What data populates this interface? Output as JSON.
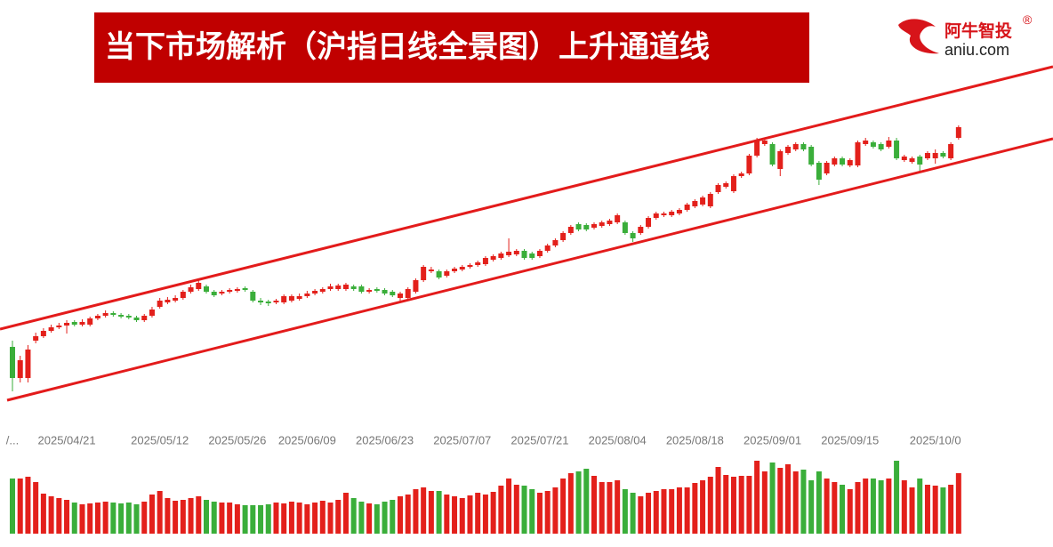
{
  "header": {
    "title": "当下市场解析（沪指日线全景图）上升通道线"
  },
  "logo": {
    "name": "阿牛智投",
    "mark": "®",
    "domain": "aniu.com"
  },
  "chart_data": {
    "type": "candlestick",
    "categories": [
      "/...",
      null,
      null,
      null,
      null,
      null,
      null,
      "2025/04/21",
      null,
      null,
      null,
      null,
      null,
      null,
      null,
      null,
      null,
      null,
      null,
      "2025/05/12",
      null,
      null,
      null,
      null,
      null,
      null,
      null,
      null,
      null,
      "2025/05/26",
      null,
      null,
      null,
      null,
      null,
      null,
      null,
      null,
      "2025/06/09",
      null,
      null,
      null,
      null,
      null,
      null,
      null,
      null,
      null,
      "2025/06/23",
      null,
      null,
      null,
      null,
      null,
      null,
      null,
      null,
      null,
      "2025/07/07",
      null,
      null,
      null,
      null,
      null,
      null,
      null,
      null,
      null,
      "2025/07/21",
      null,
      null,
      null,
      null,
      null,
      null,
      null,
      null,
      null,
      "2025/08/04",
      null,
      null,
      null,
      null,
      null,
      null,
      null,
      null,
      null,
      "2025/08/18",
      null,
      null,
      null,
      null,
      null,
      null,
      null,
      null,
      null,
      "2025/09/01",
      null,
      null,
      null,
      null,
      null,
      null,
      null,
      null,
      null,
      "2025/09/15",
      null,
      null,
      null,
      null,
      null,
      null,
      null,
      null,
      null,
      null,
      "2025/10/0",
      null,
      null,
      null
    ],
    "open": [
      3110,
      3005,
      3005,
      3131,
      3146,
      3164,
      3176,
      3182,
      3194,
      3185,
      3185,
      3206,
      3215,
      3224,
      3218,
      3215,
      3209,
      3200,
      3215,
      3245,
      3260,
      3266,
      3275,
      3296,
      3305,
      3314,
      3296,
      3290,
      3296,
      3299,
      3308,
      3296,
      3266,
      3263,
      3260,
      3260,
      3266,
      3272,
      3281,
      3290,
      3296,
      3305,
      3305,
      3305,
      3314,
      3314,
      3296,
      3305,
      3302,
      3296,
      3275,
      3275,
      3296,
      3335,
      3365,
      3365,
      3350,
      3365,
      3371,
      3380,
      3386,
      3389,
      3404,
      3410,
      3419,
      3422,
      3434,
      3425,
      3416,
      3434,
      3452,
      3470,
      3494,
      3524,
      3521,
      3512,
      3518,
      3524,
      3530,
      3530,
      3494,
      3494,
      3515,
      3545,
      3554,
      3554,
      3560,
      3572,
      3584,
      3590,
      3584,
      3632,
      3650,
      3635,
      3686,
      3695,
      3755,
      3794,
      3794,
      3710,
      3764,
      3776,
      3794,
      3785,
      3731,
      3695,
      3725,
      3746,
      3722,
      3722,
      3794,
      3800,
      3794,
      3785,
      3806,
      3740,
      3734,
      3752,
      3746,
      3746,
      3764,
      3746,
      3815
    ],
    "high": [
      3131,
      3080,
      3116,
      3158,
      3173,
      3185,
      3191,
      3200,
      3200,
      3203,
      3212,
      3221,
      3233,
      3230,
      3224,
      3221,
      3215,
      3221,
      3245,
      3275,
      3278,
      3284,
      3302,
      3320,
      3338,
      3320,
      3302,
      3302,
      3308,
      3311,
      3314,
      3302,
      3275,
      3269,
      3272,
      3287,
      3287,
      3290,
      3299,
      3305,
      3311,
      3323,
      3323,
      3326,
      3320,
      3320,
      3308,
      3311,
      3308,
      3302,
      3296,
      3311,
      3341,
      3386,
      3380,
      3371,
      3371,
      3380,
      3386,
      3392,
      3401,
      3416,
      3422,
      3431,
      3476,
      3440,
      3440,
      3431,
      3440,
      3458,
      3476,
      3500,
      3521,
      3530,
      3527,
      3530,
      3536,
      3542,
      3560,
      3536,
      3500,
      3521,
      3551,
      3566,
      3566,
      3572,
      3578,
      3596,
      3608,
      3620,
      3632,
      3662,
      3668,
      3692,
      3701,
      3761,
      3815,
      3815,
      3800,
      3776,
      3791,
      3800,
      3800,
      3791,
      3737,
      3737,
      3752,
      3752,
      3746,
      3806,
      3815,
      3806,
      3800,
      3818,
      3815,
      3758,
      3752,
      3758,
      3770,
      3776,
      3770,
      3800,
      3857
    ],
    "low": [
      2960,
      2990,
      2990,
      3122,
      3140,
      3158,
      3170,
      3155,
      3179,
      3179,
      3179,
      3200,
      3209,
      3212,
      3206,
      3203,
      3194,
      3194,
      3209,
      3239,
      3254,
      3260,
      3269,
      3290,
      3299,
      3290,
      3278,
      3284,
      3290,
      3293,
      3296,
      3260,
      3251,
      3248,
      3254,
      3254,
      3260,
      3266,
      3275,
      3284,
      3290,
      3299,
      3299,
      3299,
      3299,
      3290,
      3290,
      3293,
      3284,
      3278,
      3266,
      3266,
      3290,
      3329,
      3359,
      3338,
      3344,
      3359,
      3365,
      3374,
      3380,
      3383,
      3398,
      3404,
      3413,
      3416,
      3404,
      3404,
      3410,
      3428,
      3446,
      3464,
      3488,
      3500,
      3500,
      3506,
      3512,
      3518,
      3524,
      3488,
      3464,
      3488,
      3509,
      3539,
      3548,
      3548,
      3554,
      3566,
      3578,
      3584,
      3578,
      3626,
      3644,
      3629,
      3680,
      3689,
      3749,
      3788,
      3719,
      3686,
      3758,
      3770,
      3770,
      3719,
      3656,
      3689,
      3719,
      3719,
      3716,
      3716,
      3788,
      3779,
      3770,
      3779,
      3740,
      3734,
      3728,
      3698,
      3740,
      3728,
      3746,
      3740,
      3809
    ],
    "close": [
      3005,
      3065,
      3101,
      3146,
      3164,
      3176,
      3182,
      3191,
      3185,
      3194,
      3206,
      3215,
      3224,
      3218,
      3212,
      3209,
      3200,
      3215,
      3236,
      3266,
      3269,
      3275,
      3296,
      3311,
      3326,
      3296,
      3284,
      3296,
      3302,
      3305,
      3302,
      3266,
      3260,
      3257,
      3266,
      3281,
      3281,
      3281,
      3290,
      3299,
      3305,
      3314,
      3317,
      3320,
      3305,
      3296,
      3302,
      3299,
      3290,
      3284,
      3290,
      3305,
      3335,
      3380,
      3371,
      3344,
      3365,
      3374,
      3380,
      3386,
      3395,
      3410,
      3416,
      3425,
      3431,
      3434,
      3410,
      3410,
      3434,
      3452,
      3470,
      3494,
      3515,
      3506,
      3506,
      3524,
      3530,
      3536,
      3554,
      3494,
      3476,
      3515,
      3545,
      3560,
      3560,
      3566,
      3572,
      3590,
      3602,
      3614,
      3626,
      3656,
      3662,
      3686,
      3695,
      3755,
      3806,
      3806,
      3725,
      3770,
      3785,
      3794,
      3776,
      3725,
      3674,
      3731,
      3746,
      3725,
      3740,
      3800,
      3806,
      3785,
      3776,
      3806,
      3746,
      3752,
      3746,
      3725,
      3764,
      3764,
      3752,
      3794,
      3851
    ],
    "volume": [
      62,
      62,
      64,
      58,
      45,
      42,
      40,
      38,
      35,
      33,
      34,
      35,
      36,
      35,
      34,
      35,
      33,
      36,
      44,
      48,
      40,
      37,
      38,
      40,
      42,
      38,
      36,
      35,
      35,
      33,
      32,
      32,
      32,
      33,
      35,
      34,
      36,
      35,
      33,
      35,
      37,
      35,
      38,
      46,
      40,
      36,
      34,
      33,
      36,
      38,
      42,
      44,
      50,
      52,
      48,
      48,
      44,
      42,
      40,
      43,
      46,
      44,
      47,
      54,
      62,
      55,
      54,
      50,
      46,
      48,
      52,
      62,
      68,
      70,
      73,
      65,
      58,
      58,
      60,
      50,
      46,
      42,
      46,
      48,
      50,
      50,
      52,
      52,
      57,
      60,
      64,
      75,
      66,
      64,
      65,
      65,
      82,
      70,
      80,
      74,
      78,
      70,
      72,
      60,
      70,
      62,
      58,
      55,
      50,
      58,
      62,
      62,
      60,
      62,
      82,
      60,
      52,
      62,
      55,
      54,
      52,
      55,
      68
    ],
    "up_color": "#e3201b",
    "down_color": "#3aae3a",
    "ylim": [
      2900,
      3980
    ],
    "volume_lim": [
      0,
      100
    ]
  }
}
